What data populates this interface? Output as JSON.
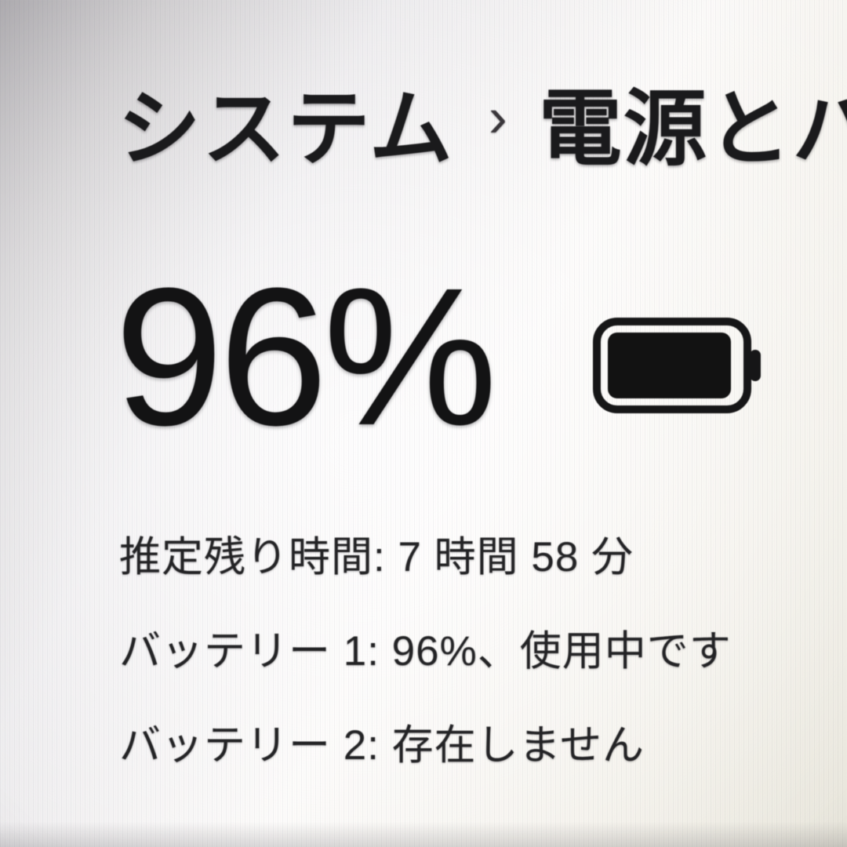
{
  "breadcrumb": {
    "parent": "システム",
    "separator": "›",
    "current": "電源とバッテリー"
  },
  "battery": {
    "percent_label": "96%",
    "percent_value": 96,
    "icon": "battery-full-icon",
    "time_remaining": "推定残り時間: 7 時間 58 分",
    "battery1_status": "バッテリー 1: 96%、使用中です",
    "battery2_status": "バッテリー 2: 存在しません"
  },
  "colors": {
    "text_primary": "#1a1a1c",
    "text_secondary": "#232325",
    "battery_fill": "#121212"
  }
}
